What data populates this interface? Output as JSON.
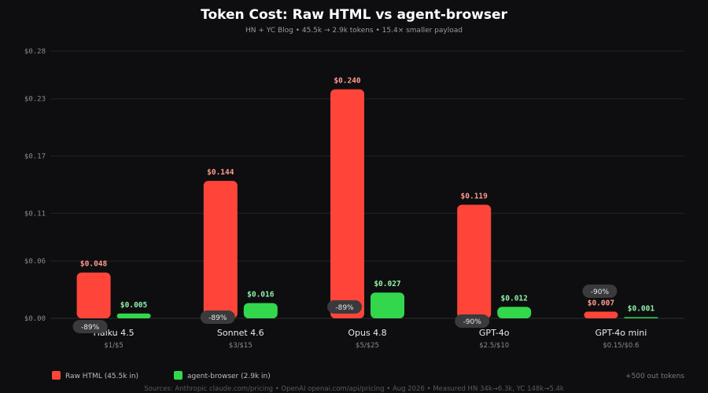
{
  "chart_data": {
    "type": "bar",
    "title": "Token Cost: Raw HTML vs agent-browser",
    "subtitle": "HN + YC Blog  •  45.5k → 2.9k tokens  •  15.4× smaller payload",
    "categories": [
      "Haiku 4.5",
      "Sonnet 4.6",
      "Opus 4.8",
      "GPT-4o",
      "GPT-4o mini"
    ],
    "category_prices": [
      "$1/$5",
      "$3/$15",
      "$5/$25",
      "$2.5/$10",
      "$0.15/$0.6"
    ],
    "series": [
      {
        "name": "Raw HTML (45.5k in)",
        "color": "#ff453a",
        "values": [
          0.048,
          0.144,
          0.24,
          0.119,
          0.007
        ],
        "labels": [
          "$0.048",
          "$0.144",
          "$0.240",
          "$0.119",
          "$0.007"
        ]
      },
      {
        "name": "agent-browser (2.9k in)",
        "color": "#32d74b",
        "values": [
          0.005,
          0.016,
          0.027,
          0.012,
          0.001
        ],
        "labels": [
          "$0.005",
          "$0.016",
          "$0.027",
          "$0.012",
          "$0.001"
        ]
      }
    ],
    "reductions": [
      "-89%",
      "-89%",
      "-89%",
      "-90%",
      "-90%"
    ],
    "ylim": [
      0,
      0.28
    ],
    "yticks": [
      0,
      0.06,
      0.11,
      0.17,
      0.23,
      0.28
    ],
    "ytick_labels": [
      "$0.00",
      "$0.06",
      "$0.11",
      "$0.17",
      "$0.23",
      "$0.28"
    ],
    "xlabel": "",
    "ylabel": "",
    "grid": true,
    "legend_position": "bottom-left",
    "note": "+500 out tokens",
    "source": "Sources: Anthropic claude.com/pricing  •  OpenAI openai.com/api/pricing  •  Aug 2026  •  Measured HN 34k→6.3k, YC 148k→5.4k"
  }
}
